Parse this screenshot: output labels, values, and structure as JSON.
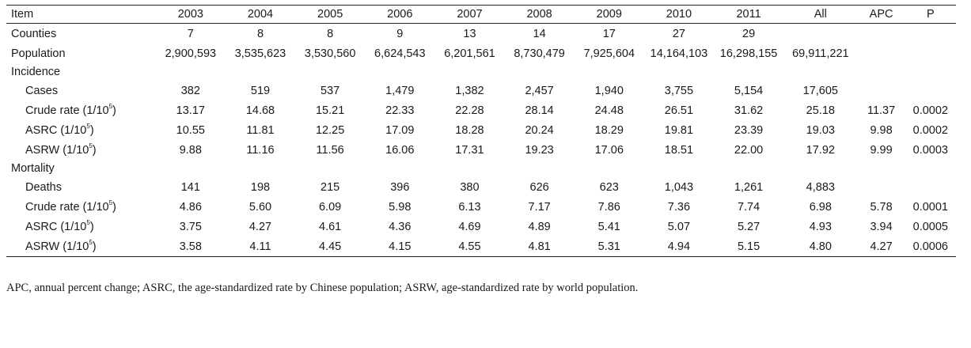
{
  "table": {
    "headers": [
      "Item",
      "2003",
      "2004",
      "2005",
      "2006",
      "2007",
      "2008",
      "2009",
      "2010",
      "2011",
      "All",
      "APC",
      "P"
    ],
    "rows": [
      {
        "label": "Counties",
        "indent": false,
        "values": [
          "7",
          "8",
          "8",
          "9",
          "13",
          "14",
          "17",
          "27",
          "29",
          "",
          "",
          ""
        ]
      },
      {
        "label": "Population",
        "indent": false,
        "values": [
          "2,900,593",
          "3,535,623",
          "3,530,560",
          "6,624,543",
          "6,201,561",
          "8,730,479",
          "7,925,604",
          "14,164,103",
          "16,298,155",
          "69,911,221",
          "",
          ""
        ]
      },
      {
        "label": "Incidence",
        "section": true
      },
      {
        "label": "Cases",
        "indent": true,
        "values": [
          "382",
          "519",
          "537",
          "1,479",
          "1,382",
          "2,457",
          "1,940",
          "3,755",
          "5,154",
          "17,605",
          "",
          ""
        ]
      },
      {
        "label": "Crude rate (1/10",
        "sup": "5",
        "tail": ")",
        "indent": true,
        "values": [
          "13.17",
          "14.68",
          "15.21",
          "22.33",
          "22.28",
          "28.14",
          "24.48",
          "26.51",
          "31.62",
          "25.18",
          "11.37",
          "0.0002"
        ]
      },
      {
        "label": "ASRC (1/10",
        "sup": "5",
        "tail": ")",
        "indent": true,
        "values": [
          "10.55",
          "11.81",
          "12.25",
          "17.09",
          "18.28",
          "20.24",
          "18.29",
          "19.81",
          "23.39",
          "19.03",
          "9.98",
          "0.0002"
        ]
      },
      {
        "label": "ASRW (1/10",
        "sup": "5",
        "tail": ")",
        "indent": true,
        "values": [
          "9.88",
          "11.16",
          "11.56",
          "16.06",
          "17.31",
          "19.23",
          "17.06",
          "18.51",
          "22.00",
          "17.92",
          "9.99",
          "0.0003"
        ]
      },
      {
        "label": "Mortality",
        "section": true
      },
      {
        "label": "Deaths",
        "indent": true,
        "values": [
          "141",
          "198",
          "215",
          "396",
          "380",
          "626",
          "623",
          "1,043",
          "1,261",
          "4,883",
          "",
          ""
        ]
      },
      {
        "label": "Crude rate (1/10",
        "sup": "5",
        "tail": ")",
        "indent": true,
        "values": [
          "4.86",
          "5.60",
          "6.09",
          "5.98",
          "6.13",
          "7.17",
          "7.86",
          "7.36",
          "7.74",
          "6.98",
          "5.78",
          "0.0001"
        ]
      },
      {
        "label": "ASRC (1/10",
        "sup": "5",
        "tail": ")",
        "indent": true,
        "values": [
          "3.75",
          "4.27",
          "4.61",
          "4.36",
          "4.69",
          "4.89",
          "5.41",
          "5.07",
          "5.27",
          "4.93",
          "3.94",
          "0.0005"
        ]
      },
      {
        "label": "ASRW (1/10",
        "sup": "5",
        "tail": ")",
        "indent": true,
        "values": [
          "3.58",
          "4.11",
          "4.45",
          "4.15",
          "4.55",
          "4.81",
          "5.31",
          "4.94",
          "5.15",
          "4.80",
          "4.27",
          "0.0006"
        ]
      }
    ]
  },
  "footnote": "APC, annual percent change; ASRC, the age-standardized rate by Chinese population; ASRW, age-standardized rate by world population."
}
